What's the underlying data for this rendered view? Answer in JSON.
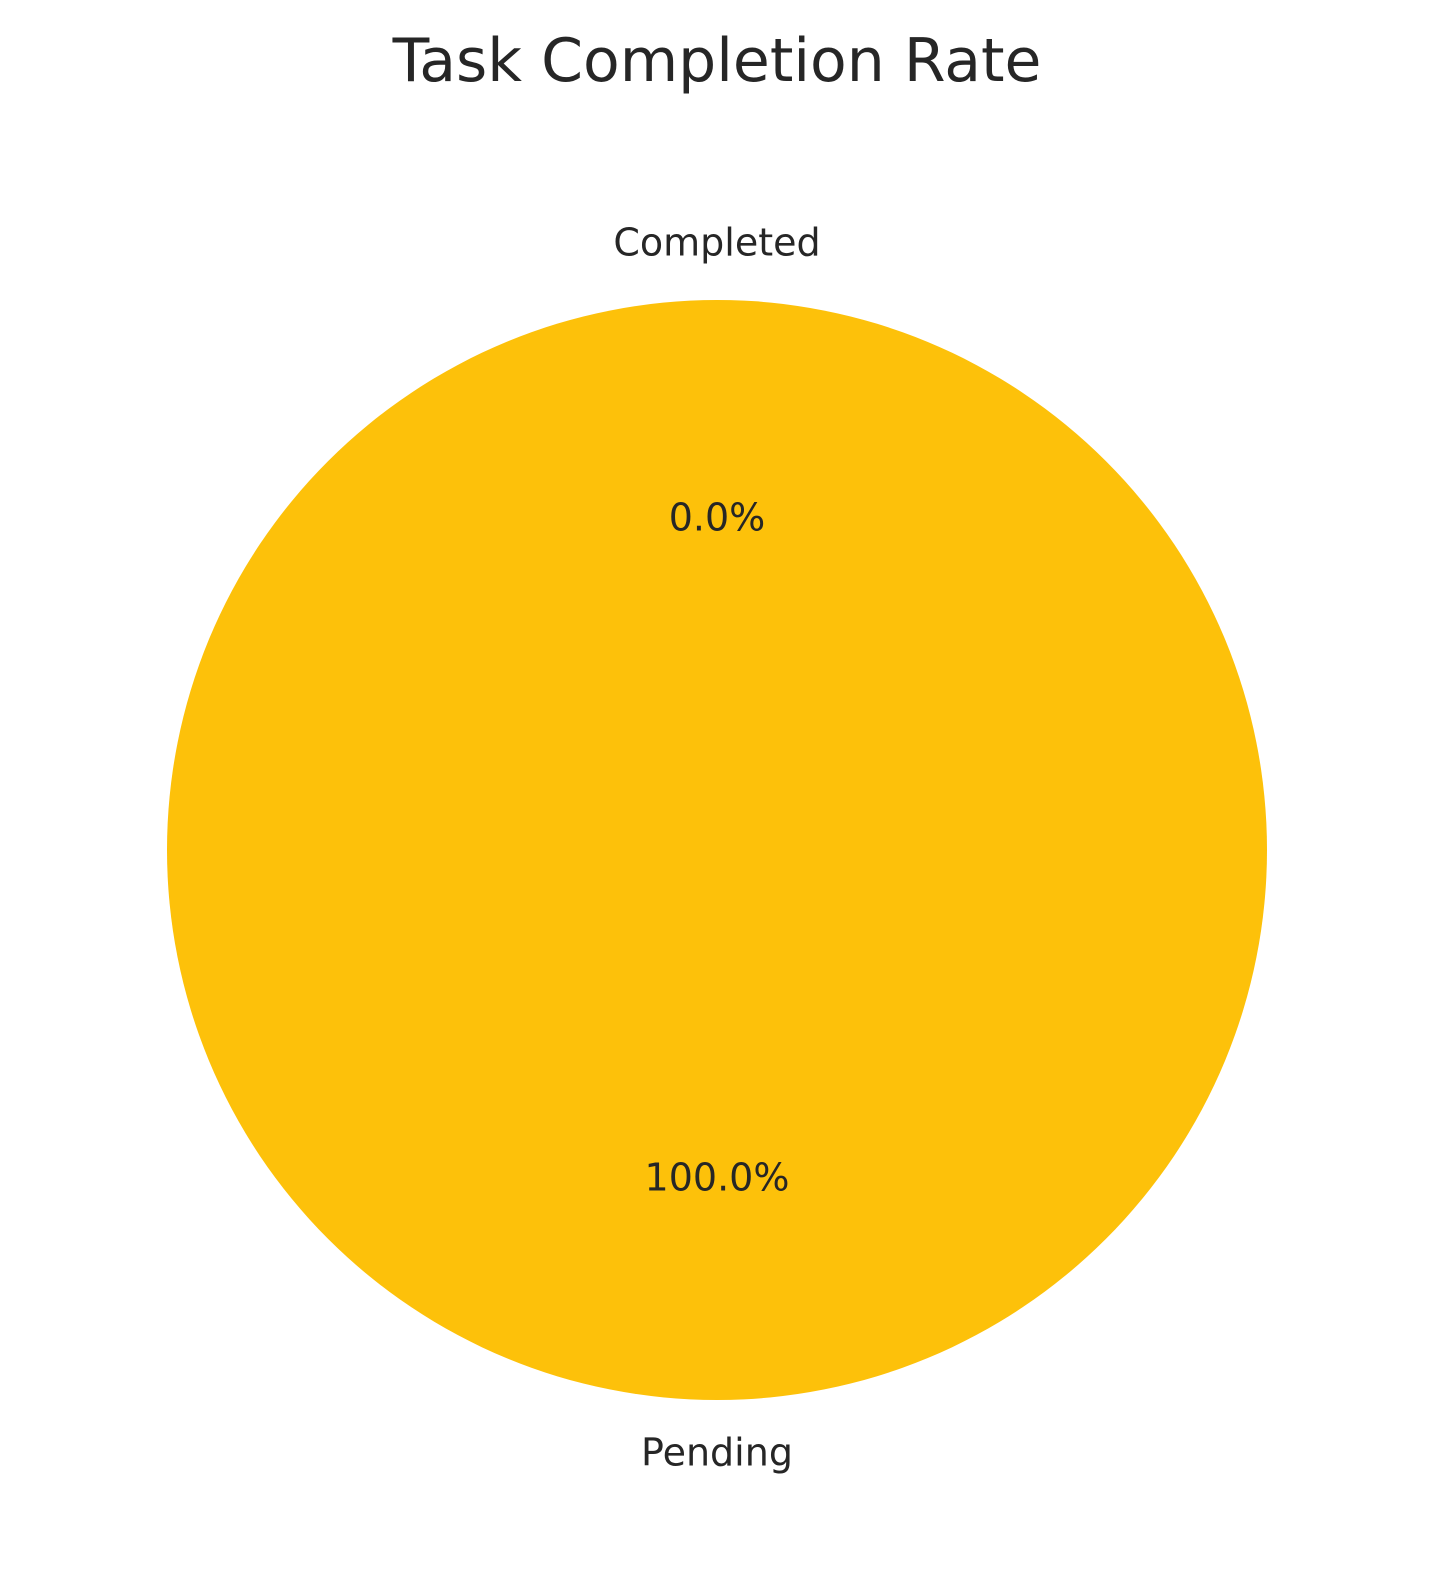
{
  "chart_data": {
    "type": "pie",
    "title": "Task Completion Rate",
    "slices": [
      {
        "label": "Completed",
        "value": 0,
        "pct_label": "0.0%",
        "color": "#4CAF50"
      },
      {
        "label": "Pending",
        "value": 100,
        "pct_label": "100.0%",
        "color": "#FDC10A"
      }
    ],
    "start_angle_deg": 90,
    "direction": "counterclockwise"
  }
}
